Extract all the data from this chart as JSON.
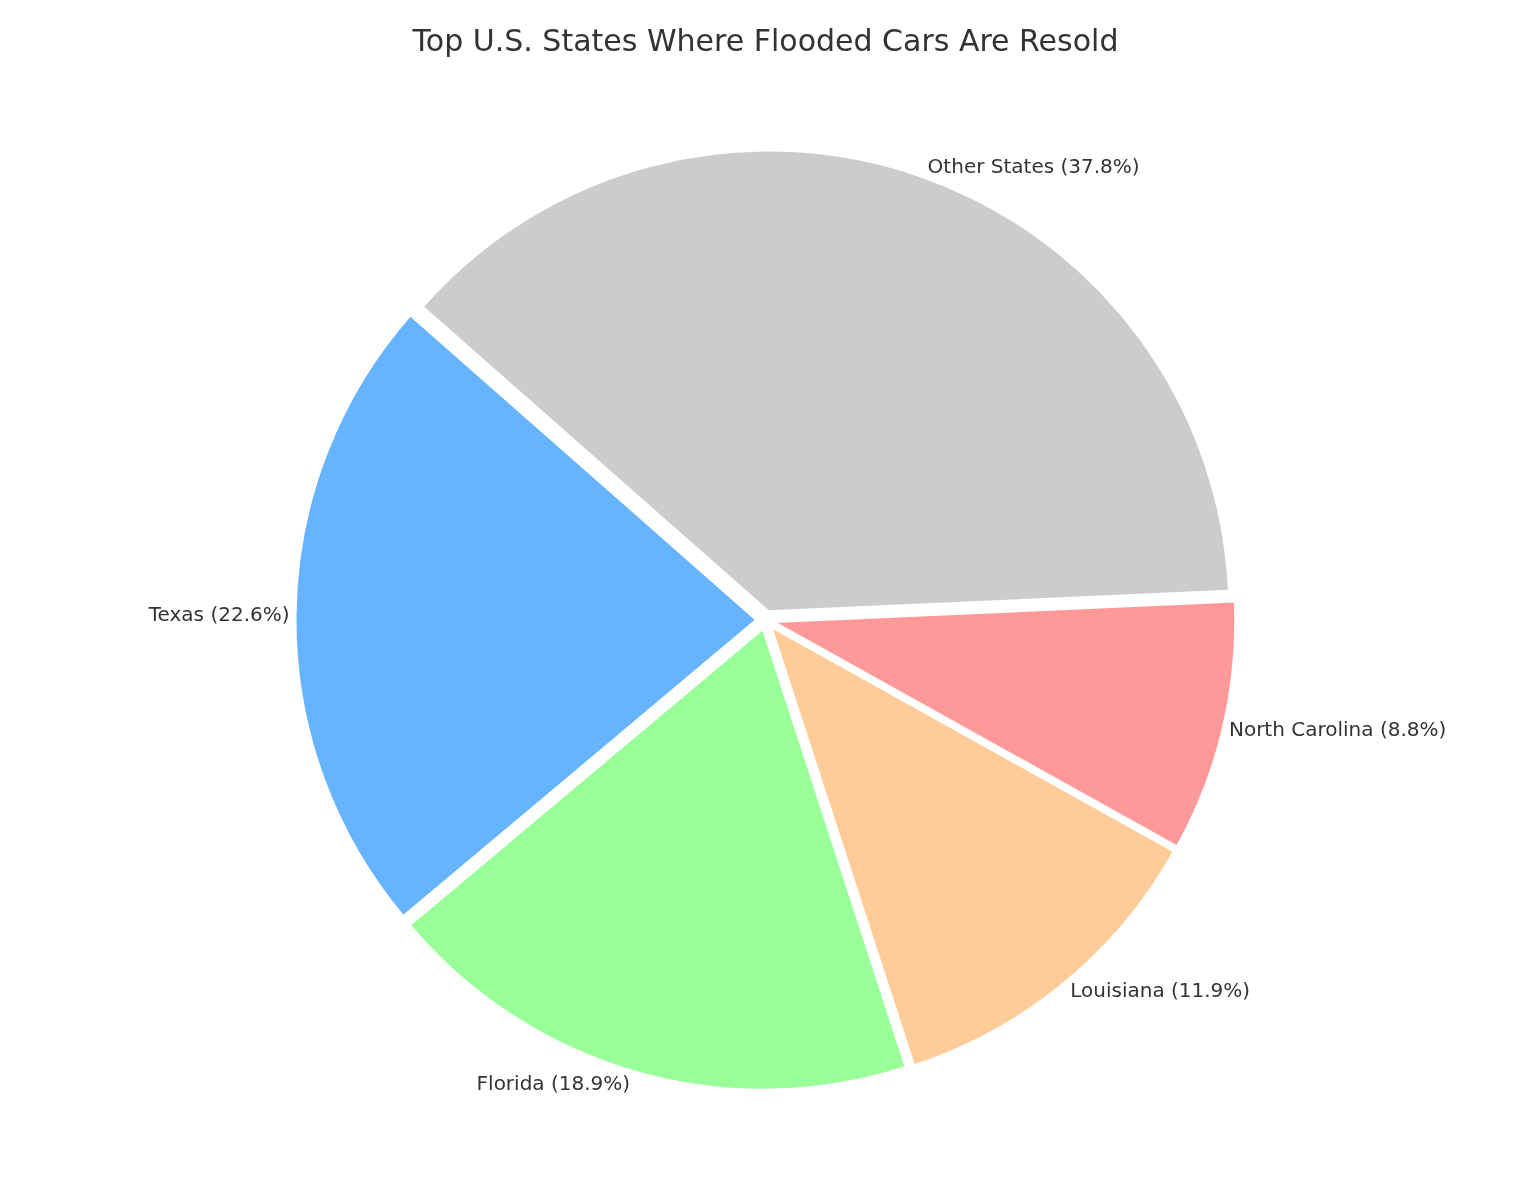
{
  "chart_data": {
    "type": "pie",
    "title": "Top U.S. States Where Flooded Cars Are Resold",
    "categories": [
      "Texas",
      "Florida",
      "Louisiana",
      "North Carolina",
      "Other States"
    ],
    "values": [
      22.6,
      18.9,
      11.9,
      8.8,
      37.8
    ],
    "value_labels": [
      "(22.6%)",
      "(18.9%)",
      "(11.9%)",
      "(8.8%)",
      "(37.8%)"
    ],
    "colors": [
      "#66b3ff",
      "#99ff99",
      "#ffcc99",
      "#ff9999",
      "#cccccc"
    ],
    "legend": false
  }
}
